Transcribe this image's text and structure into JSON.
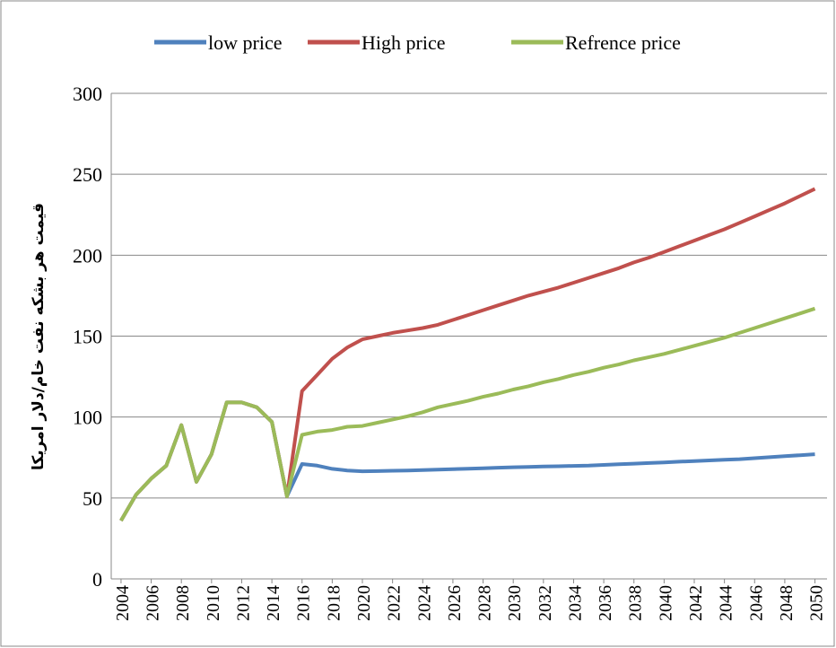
{
  "chart_data": {
    "type": "line",
    "y_label": "قیمت هر بشکه نفت خام/دلار امریکا",
    "x": [
      2004,
      2005,
      2006,
      2007,
      2008,
      2009,
      2010,
      2011,
      2012,
      2013,
      2014,
      2015,
      2016,
      2017,
      2018,
      2019,
      2020,
      2021,
      2022,
      2023,
      2024,
      2025,
      2026,
      2027,
      2028,
      2029,
      2030,
      2031,
      2032,
      2033,
      2034,
      2035,
      2036,
      2037,
      2038,
      2039,
      2040,
      2041,
      2042,
      2043,
      2044,
      2045,
      2046,
      2047,
      2048,
      2049,
      2050
    ],
    "series": [
      {
        "name": "low price",
        "color": "#4f81bd",
        "values": [
          36,
          52,
          62,
          70,
          95,
          60,
          77,
          109,
          109,
          106,
          97,
          51,
          71,
          70,
          68,
          67,
          66.5,
          66.6,
          66.8,
          67,
          67.2,
          67.5,
          67.8,
          68.1,
          68.4,
          68.7,
          69,
          69.2,
          69.4,
          69.6,
          69.8,
          70,
          70.4,
          70.8,
          71.2,
          71.6,
          72,
          72.4,
          72.8,
          73.2,
          73.6,
          74,
          74.6,
          75.2,
          75.8,
          76.4,
          77
        ]
      },
      {
        "name": "High price",
        "color": "#c0504d",
        "values": [
          36,
          52,
          62,
          70,
          95,
          60,
          77,
          109,
          109,
          106,
          97,
          51,
          116,
          126,
          136,
          143,
          148,
          150,
          152,
          153.5,
          155,
          157,
          160,
          163,
          166,
          169,
          172,
          175,
          177.5,
          180,
          183,
          186,
          189,
          192,
          195.5,
          198.5,
          202,
          205.5,
          209,
          212.5,
          216,
          220,
          224,
          228,
          232,
          236.5,
          241
        ]
      },
      {
        "name": "Refrence price",
        "color": "#9bbb59",
        "values": [
          36,
          52,
          62,
          70,
          95,
          60,
          77,
          109,
          109,
          106,
          97,
          51,
          89,
          91,
          92,
          94,
          94.5,
          96.5,
          98.5,
          100.5,
          103,
          106,
          108,
          110,
          112.5,
          114.5,
          117,
          119,
          121.5,
          123.5,
          126,
          128,
          130.5,
          132.5,
          135,
          137,
          139,
          141.5,
          144,
          146.5,
          149,
          152,
          155,
          158,
          161,
          164,
          167
        ]
      }
    ],
    "xlim": [
      2003.35,
      2050.8
    ],
    "xticks": [
      2004,
      2006,
      2008,
      2010,
      2012,
      2014,
      2016,
      2018,
      2020,
      2022,
      2024,
      2026,
      2028,
      2030,
      2032,
      2034,
      2036,
      2038,
      2040,
      2042,
      2044,
      2046,
      2048,
      2050
    ],
    "ylim": [
      0,
      300
    ],
    "yticks": [
      0,
      50,
      100,
      150,
      200,
      250,
      300
    ],
    "grid": true,
    "legend": "top"
  }
}
